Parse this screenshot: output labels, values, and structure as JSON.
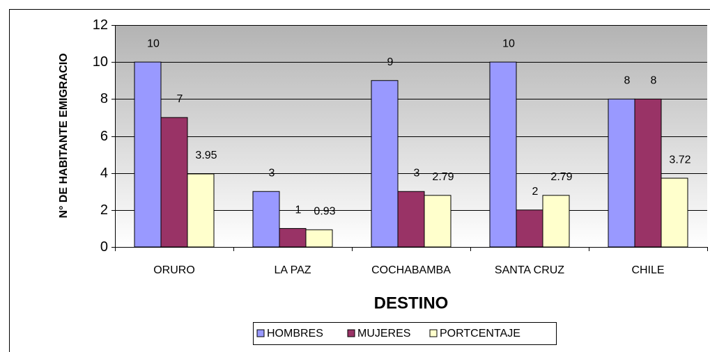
{
  "chart_data": {
    "type": "bar",
    "x_label": "DESTINO",
    "y_label": "N° DE HABITANTE EMIGRACIO",
    "categories": [
      "ORURO",
      "LA PAZ",
      "COCHABAMBA",
      "SANTA CRUZ",
      "CHILE"
    ],
    "series": [
      {
        "name": "HOMBRES",
        "color": "#9999ff",
        "values": [
          10,
          3,
          9,
          10,
          8
        ]
      },
      {
        "name": "MUJERES",
        "color": "#993366",
        "values": [
          7,
          1,
          3,
          2,
          8
        ]
      },
      {
        "name": "PORTCENTAJE",
        "color": "#ffffcc",
        "values": [
          3.95,
          0.93,
          2.79,
          2.79,
          3.72
        ]
      }
    ],
    "ylim": [
      0,
      12
    ],
    "yticks": [
      0,
      2,
      4,
      6,
      8,
      10,
      12
    ],
    "grid": true,
    "legend": "bottom"
  }
}
